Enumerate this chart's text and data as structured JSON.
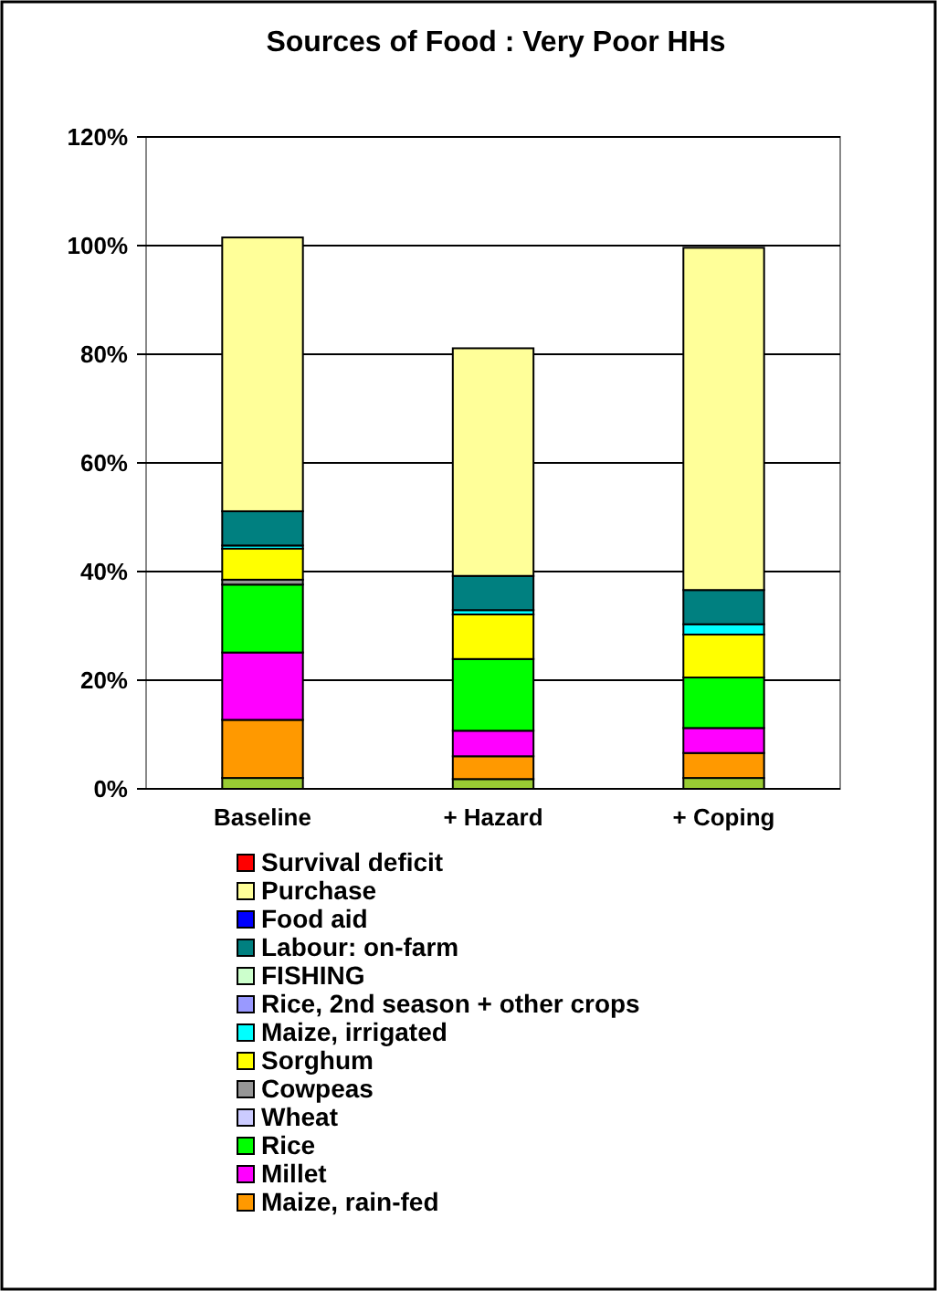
{
  "chart_data": {
    "type": "bar",
    "title": "Sources of Food : Very Poor HHs",
    "categories": [
      "Baseline",
      "+ Hazard",
      "+ Coping"
    ],
    "stacked": true,
    "ylim": [
      0,
      120
    ],
    "yticks": [
      {
        "value": 0,
        "label": "0%"
      },
      {
        "value": 20,
        "label": "20%"
      },
      {
        "value": 40,
        "label": "40%"
      },
      {
        "value": 60,
        "label": "60%"
      },
      {
        "value": 80,
        "label": "80%"
      },
      {
        "value": 100,
        "label": "100%"
      },
      {
        "value": 120,
        "label": "120%"
      }
    ],
    "grid": "y",
    "legend": "bottom",
    "series": [
      {
        "color": "#99cc33",
        "values": [
          2,
          1.8,
          2
        ]
      },
      {
        "name": "Maize, rain-fed",
        "color": "#ff9900",
        "values": [
          10.7,
          4.2,
          4.6
        ]
      },
      {
        "name": "Millet",
        "color": "#ff00ff",
        "values": [
          12.4,
          4.7,
          4.6
        ]
      },
      {
        "name": "Rice",
        "color": "#00ff00",
        "values": [
          12.5,
          13.2,
          9.3
        ]
      },
      {
        "name": "Wheat",
        "color": "#ccccff",
        "values": [
          0,
          0,
          0
        ]
      },
      {
        "name": "Cowpeas",
        "color": "#969696",
        "values": [
          0.9,
          0,
          0
        ]
      },
      {
        "name": "Sorghum",
        "color": "#ffff00",
        "values": [
          5.7,
          8.2,
          7.9
        ]
      },
      {
        "name": "Maize, irrigated",
        "color": "#00ffff",
        "values": [
          0.6,
          0.8,
          1.9
        ]
      },
      {
        "name": "Rice, 2nd season +  other crops",
        "color": "#9999ff",
        "values": [
          0,
          0,
          0
        ]
      },
      {
        "name": "FISHING",
        "color": "#ccffcc",
        "values": [
          0,
          0,
          0
        ]
      },
      {
        "name": "Labour: on-farm",
        "color": "#008080",
        "values": [
          6.3,
          6.3,
          6.3
        ]
      },
      {
        "name": "Food aid",
        "color": "#0000ff",
        "values": [
          0,
          0,
          0
        ]
      },
      {
        "name": "Purchase",
        "color": "#ffff99",
        "values": [
          50.4,
          41.9,
          63
        ]
      },
      {
        "name": "Survival deficit",
        "color": "#ff0000",
        "values": [
          0,
          0,
          0
        ]
      }
    ]
  }
}
